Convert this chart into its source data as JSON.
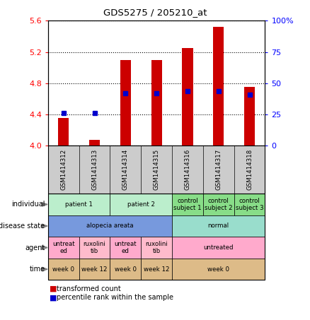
{
  "title": "GDS5275 / 205210_at",
  "samples": [
    "GSM1414312",
    "GSM1414313",
    "GSM1414314",
    "GSM1414315",
    "GSM1414316",
    "GSM1414317",
    "GSM1414318"
  ],
  "bar_values": [
    4.35,
    4.07,
    5.1,
    5.1,
    5.25,
    5.52,
    4.75
  ],
  "bar_base": 4.0,
  "dot_values": [
    4.42,
    4.42,
    4.67,
    4.67,
    4.7,
    4.7,
    4.65
  ],
  "ylim": [
    4.0,
    5.6
  ],
  "y2lim": [
    0,
    100
  ],
  "yticks": [
    4.0,
    4.4,
    4.8,
    5.2,
    5.6
  ],
  "y2ticks": [
    0,
    25,
    50,
    75,
    100
  ],
  "bar_color": "#cc0000",
  "dot_color": "#0000cc",
  "metadata_rows": {
    "individual": {
      "label": "individual",
      "groups": [
        {
          "cols": [
            0,
            1
          ],
          "text": "patient 1",
          "color": "#bbeecc"
        },
        {
          "cols": [
            2,
            3
          ],
          "text": "patient 2",
          "color": "#bbeecc"
        },
        {
          "cols": [
            4
          ],
          "text": "control\nsubject 1",
          "color": "#88dd88"
        },
        {
          "cols": [
            5
          ],
          "text": "control\nsubject 2",
          "color": "#88dd88"
        },
        {
          "cols": [
            6
          ],
          "text": "control\nsubject 3",
          "color": "#88dd88"
        }
      ]
    },
    "disease_state": {
      "label": "disease state",
      "groups": [
        {
          "cols": [
            0,
            1,
            2,
            3
          ],
          "text": "alopecia areata",
          "color": "#7799dd"
        },
        {
          "cols": [
            4,
            5,
            6
          ],
          "text": "normal",
          "color": "#99ddcc"
        }
      ]
    },
    "agent": {
      "label": "agent",
      "groups": [
        {
          "cols": [
            0
          ],
          "text": "untreat\ned",
          "color": "#ffaacc"
        },
        {
          "cols": [
            1
          ],
          "text": "ruxolini\ntib",
          "color": "#ffbbcc"
        },
        {
          "cols": [
            2
          ],
          "text": "untreat\ned",
          "color": "#ffaacc"
        },
        {
          "cols": [
            3
          ],
          "text": "ruxolini\ntib",
          "color": "#ffbbcc"
        },
        {
          "cols": [
            4,
            5,
            6
          ],
          "text": "untreated",
          "color": "#ffaacc"
        }
      ]
    },
    "time": {
      "label": "time",
      "groups": [
        {
          "cols": [
            0
          ],
          "text": "week 0",
          "color": "#ddbb88"
        },
        {
          "cols": [
            1
          ],
          "text": "week 12",
          "color": "#ddbb88"
        },
        {
          "cols": [
            2
          ],
          "text": "week 0",
          "color": "#ddbb88"
        },
        {
          "cols": [
            3
          ],
          "text": "week 12",
          "color": "#ddbb88"
        },
        {
          "cols": [
            4,
            5,
            6
          ],
          "text": "week 0",
          "color": "#ddbb88"
        }
      ]
    }
  },
  "meta_order": [
    "individual",
    "disease_state",
    "agent",
    "time"
  ],
  "meta_labels": [
    "individual",
    "disease state",
    "agent",
    "time"
  ]
}
